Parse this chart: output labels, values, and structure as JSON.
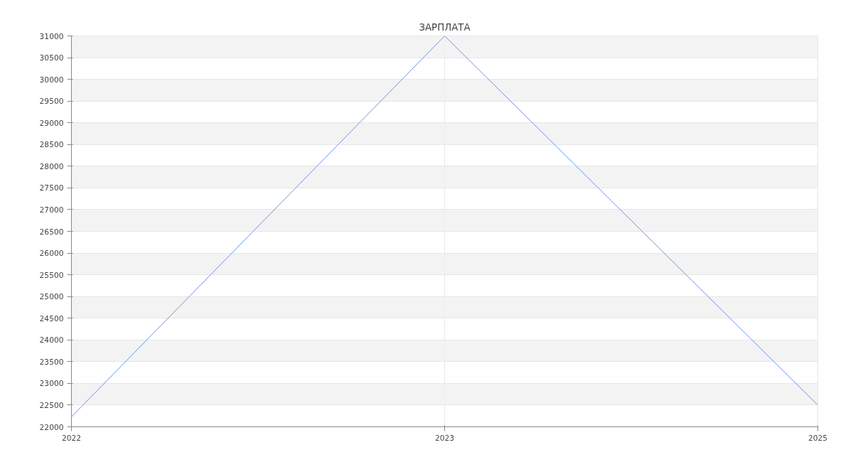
{
  "chart_data": {
    "type": "line",
    "title": "ЗАРПЛАТА",
    "categories": [
      "2022",
      "2023",
      "2025"
    ],
    "series": [
      {
        "color": "#6495ed",
        "values": [
          22230,
          31000,
          22500
        ]
      }
    ],
    "ylim": [
      22000,
      31000
    ],
    "yticks": [
      22000,
      22500,
      23000,
      23500,
      24000,
      24500,
      25000,
      25500,
      26000,
      26500,
      27000,
      27500,
      28000,
      28500,
      29000,
      29500,
      30000,
      30500,
      31000
    ],
    "grid": true,
    "line_style": "solid"
  }
}
